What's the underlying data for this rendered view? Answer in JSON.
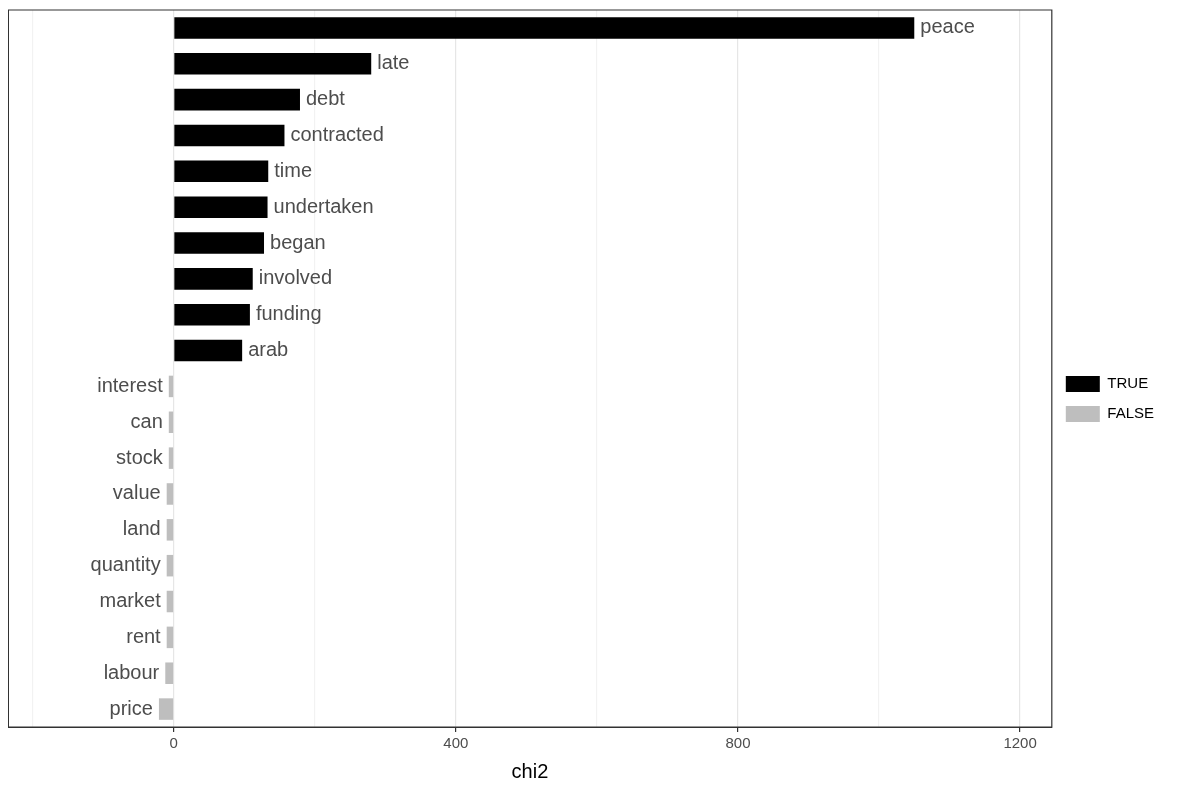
{
  "chart_data": {
    "type": "bar",
    "orientation": "horizontal",
    "xlabel": "chi2",
    "categories": [
      "peace",
      "late",
      "debt",
      "contracted",
      "time",
      "undertaken",
      "began",
      "involved",
      "funding",
      "arab",
      "interest",
      "can",
      "stock",
      "value",
      "land",
      "quantity",
      "market",
      "rent",
      "labour",
      "price"
    ],
    "series": [
      {
        "name": "TRUE",
        "color": "#000000",
        "values": [
          1050,
          280,
          179,
          157,
          134,
          133,
          128,
          112,
          108,
          97,
          null,
          null,
          null,
          null,
          null,
          null,
          null,
          null,
          null,
          null
        ]
      },
      {
        "name": "FALSE",
        "color": "#bebebe",
        "values": [
          null,
          null,
          null,
          null,
          null,
          null,
          null,
          null,
          null,
          null,
          -7,
          -7,
          -7,
          -10,
          -10,
          -10,
          -10,
          -10,
          -12,
          -21
        ]
      }
    ],
    "xlim": [
      -235,
      1245
    ],
    "xticks": [
      {
        "value": -200,
        "label": null
      },
      0,
      {
        "value": 200,
        "label": null
      },
      400,
      {
        "value": 600,
        "label": null
      },
      800,
      {
        "value": 1000,
        "label": null
      },
      1200
    ],
    "grid": "x",
    "legend": "right",
    "tick_labels": "x"
  }
}
